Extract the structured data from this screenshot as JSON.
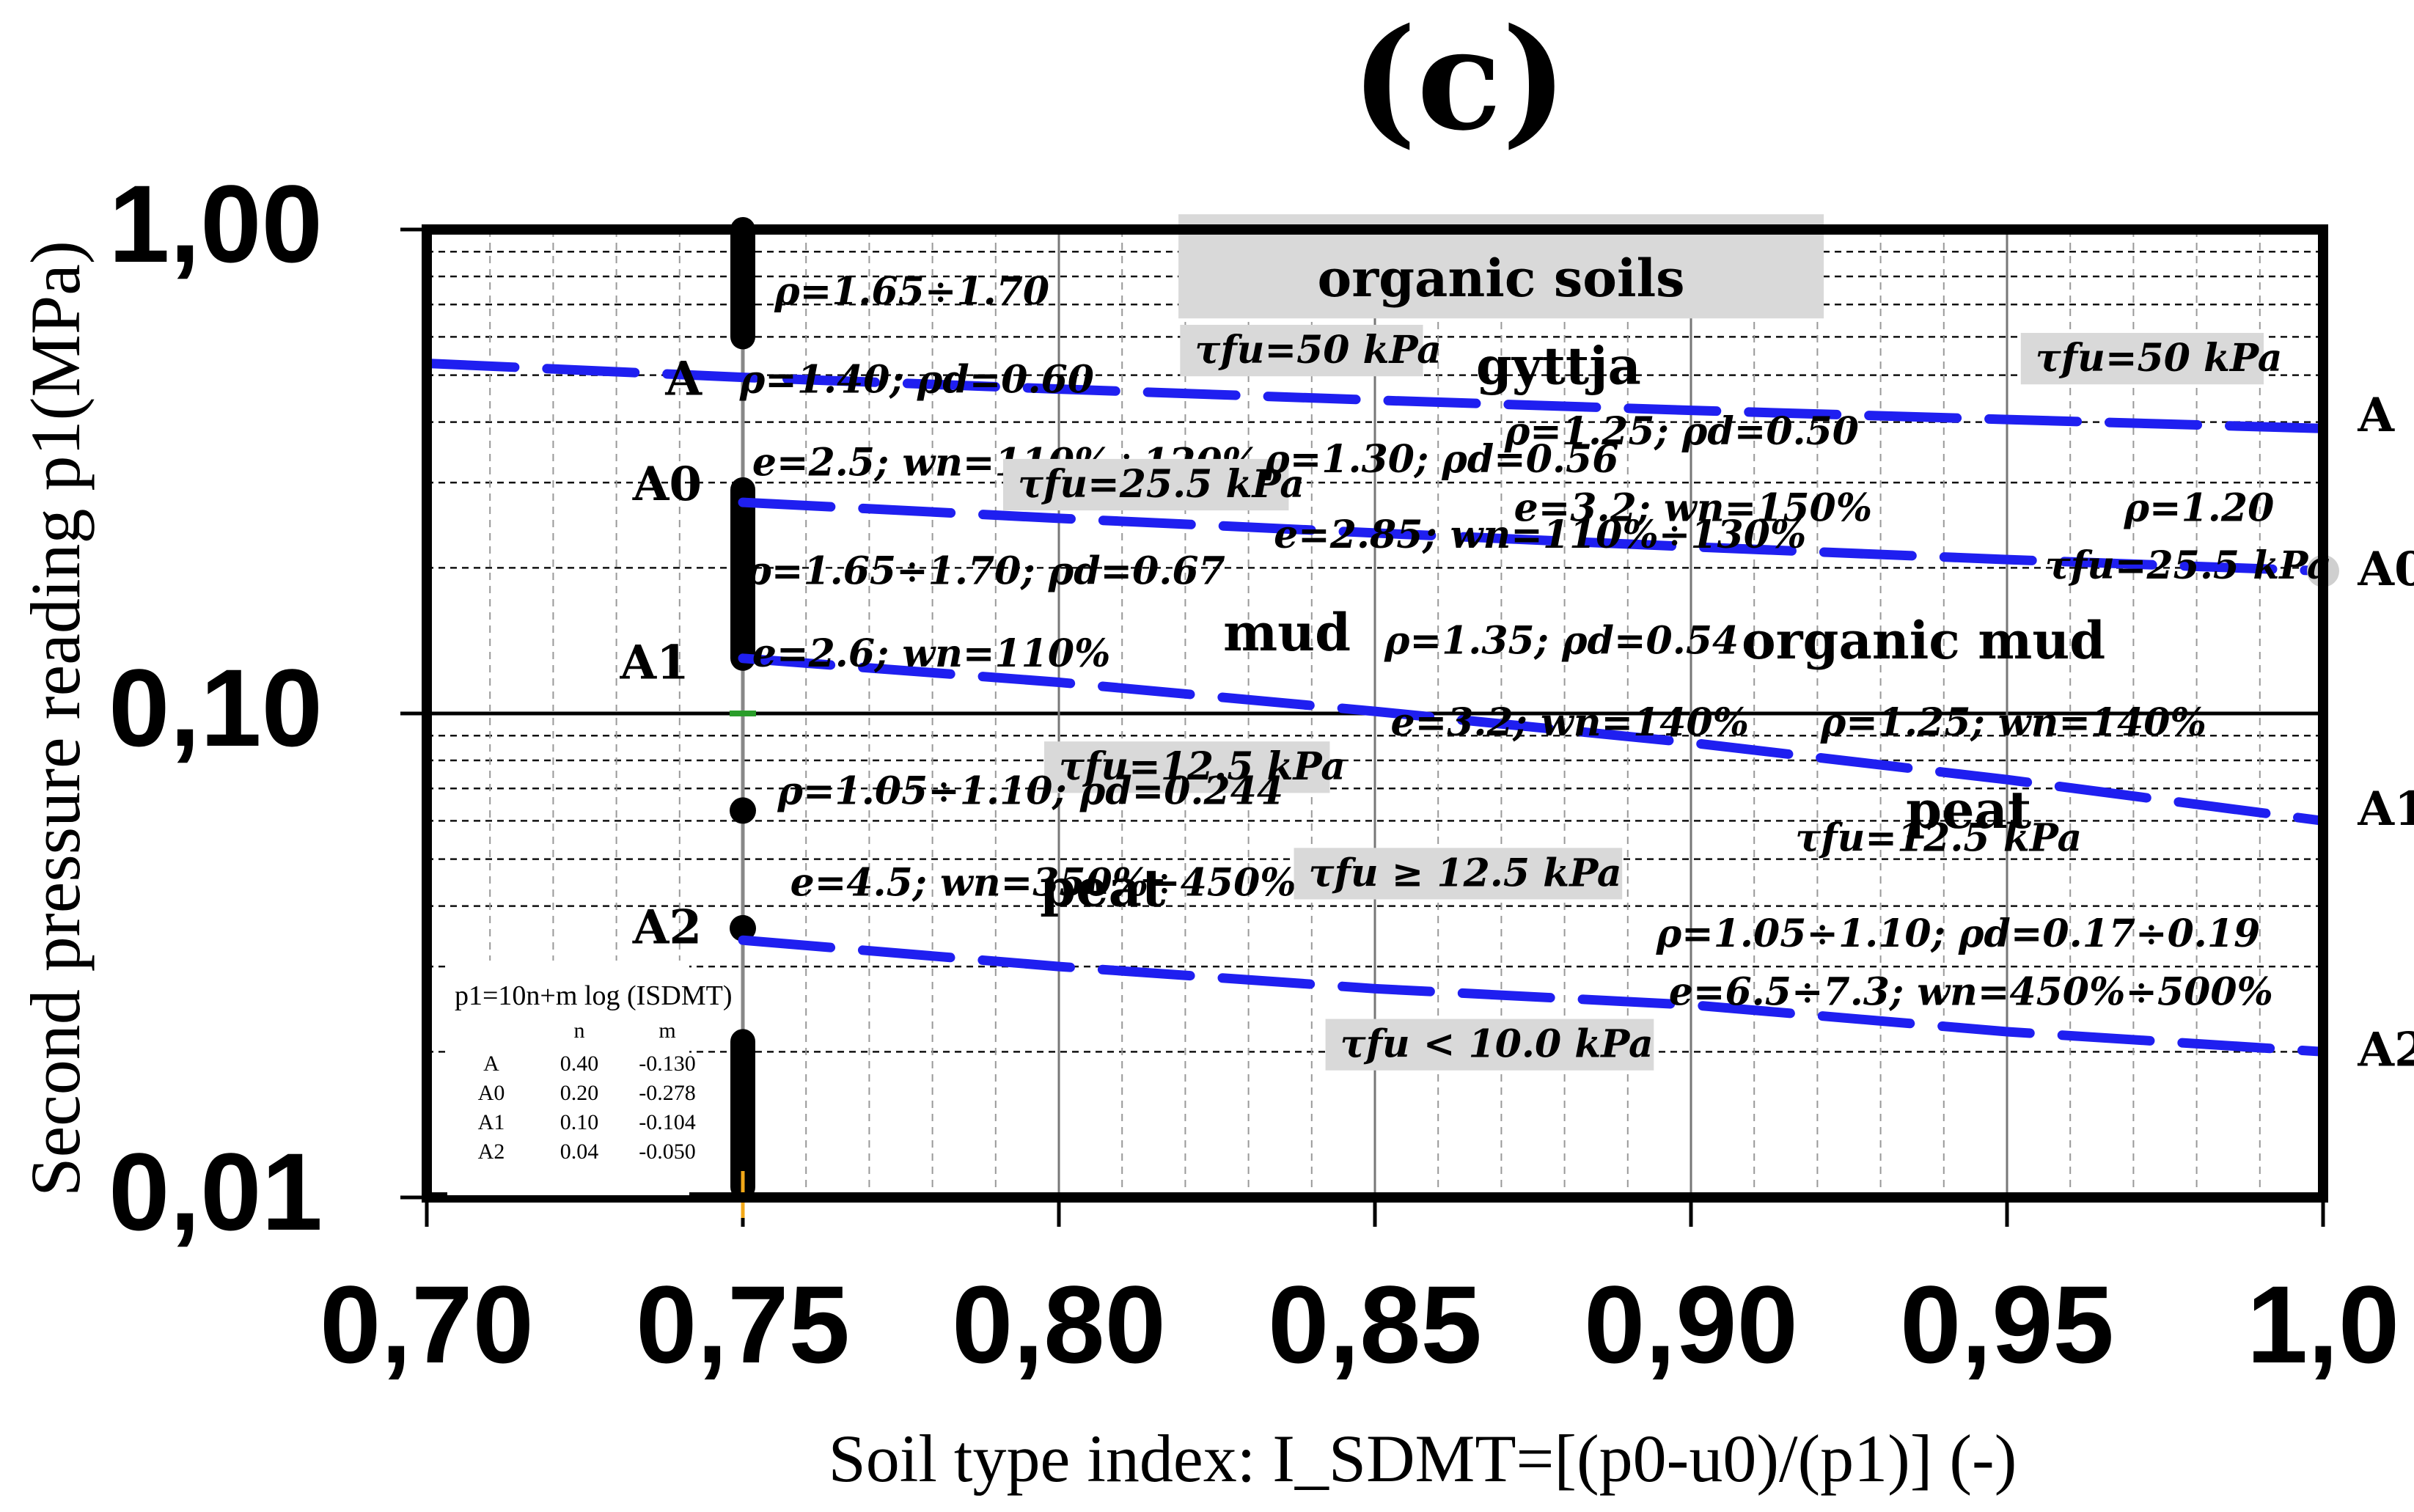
{
  "panel_label": "(c)",
  "chart_data": {
    "type": "line",
    "title": "",
    "xlabel": "Soil type index: I_SDMT=[(p0-u0)/(p1)] (-)",
    "ylabel": "Second pressure reading p1(MPa)",
    "xlim": [
      0.7,
      1.0
    ],
    "ylim": [
      0.01,
      1.0
    ],
    "yscale": "log",
    "x_tick_labels": [
      "0,70",
      "0,75",
      "0,80",
      "0,85",
      "0,90",
      "0,95",
      "1,0"
    ],
    "y_tick_labels": [
      "1,00",
      "0,10",
      "0,01"
    ],
    "y_tick_values": [
      1.0,
      0.1,
      0.01
    ],
    "x_tick_values": [
      0.7,
      0.75,
      0.8,
      0.85,
      0.9,
      0.95,
      1.0
    ],
    "equation": "p1=10^(n+m log(I_SDMT))",
    "series": [
      {
        "name": "A",
        "n": 0.4,
        "m": -0.13,
        "x": [
          0.7,
          0.75,
          0.8,
          0.85,
          0.9,
          0.95,
          1.0
        ],
        "values": [
          0.529,
          0.495,
          0.468,
          0.444,
          0.423,
          0.405,
          0.388
        ]
      },
      {
        "name": "A0",
        "n": 0.2,
        "m": -0.278,
        "x": [
          0.75,
          0.8,
          0.85,
          0.9,
          0.95,
          1.0
        ],
        "values": [
          0.273,
          0.253,
          0.236,
          0.221,
          0.208,
          0.197
        ]
      },
      {
        "name": "A1",
        "n": 0.1,
        "m": -0.104,
        "x": [
          0.75,
          0.8,
          0.85,
          0.9,
          0.95,
          1.0
        ],
        "values": [
          0.13,
          0.116,
          0.101,
          0.087,
          0.073,
          0.06
        ]
      },
      {
        "name": "A2",
        "n": 0.04,
        "m": -0.05,
        "x": [
          0.75,
          0.8,
          0.85,
          0.9,
          0.95,
          1.0
        ],
        "values": [
          0.034,
          0.03,
          0.027,
          0.025,
          0.022,
          0.02
        ]
      }
    ],
    "curve_labels": [
      {
        "text": "A",
        "x": 0.7435,
        "y": 0.455
      },
      {
        "text": "A0",
        "x": 0.7435,
        "y": 0.276
      },
      {
        "text": "A1",
        "x": 0.7415,
        "y": 0.118
      },
      {
        "text": "A2",
        "x": 0.7435,
        "y": 0.0335
      },
      {
        "text": "A",
        "x": 1.0055,
        "y": 0.383
      },
      {
        "text": "A0",
        "x": 1.0055,
        "y": 0.184
      },
      {
        "text": "A1",
        "x": 1.0055,
        "y": 0.0588
      },
      {
        "text": "A2",
        "x": 1.0055,
        "y": 0.0187
      }
    ],
    "legend_table": {
      "equation": "p1=10n+m log (ISDMT)",
      "header": [
        "",
        "n",
        "m"
      ],
      "rows": [
        [
          "A",
          "0.40",
          "-0.130"
        ],
        [
          "A0",
          "0.20",
          "-0.278"
        ],
        [
          "A1",
          "0.10",
          "-0.104"
        ],
        [
          "A2",
          "0.04",
          "-0.050"
        ]
      ]
    },
    "zone_labels": [
      {
        "text": "organic soils",
        "x": 0.834,
        "y": 0.78,
        "boxed": true
      },
      {
        "text": "gyttja",
        "x": 0.866,
        "y": 0.48
      },
      {
        "text": "mud",
        "x": 0.826,
        "y": 0.135
      },
      {
        "text": "organic mud",
        "x": 0.908,
        "y": 0.13
      },
      {
        "text": "peat",
        "x": 0.797,
        "y": 0.04
      },
      {
        "text": "peat",
        "x": 0.934,
        "y": 0.058
      }
    ],
    "annotations": [
      {
        "text": "ρ=1.65÷1.70",
        "x": 0.755,
        "y": 0.7
      },
      {
        "text": "ρ=1.40; ρd=0.60",
        "x": 0.7495,
        "y": 0.46
      },
      {
        "text": "e=2.5; wn=110%÷120%",
        "x": 0.7515,
        "y": 0.31
      },
      {
        "text": "τfu=25.5 kPa",
        "x": 0.7935,
        "y": 0.28,
        "boxed": true
      },
      {
        "text": "τfu=50 kPa",
        "x": 0.8215,
        "y": 0.53,
        "boxed": true
      },
      {
        "text": "ρ=1.30; ρd=0.56",
        "x": 0.8325,
        "y": 0.315
      },
      {
        "text": "e=2.85; wn=110%÷130%",
        "x": 0.834,
        "y": 0.22
      },
      {
        "text": "ρ=1.25; ρd=0.50",
        "x": 0.8705,
        "y": 0.36
      },
      {
        "text": "e=3.2; wn=150%",
        "x": 0.872,
        "y": 0.25
      },
      {
        "text": "τfu=50 kPa",
        "x": 0.9545,
        "y": 0.51,
        "boxed": true
      },
      {
        "text": "ρ=1.20",
        "x": 0.9685,
        "y": 0.25
      },
      {
        "text": "τfu=25.5 kPa",
        "x": 0.956,
        "y": 0.19
      },
      {
        "text": "ρ=1.65÷1.70; ρd=0.67",
        "x": 0.7505,
        "y": 0.185
      },
      {
        "text": "e=2.6; wn=110%",
        "x": 0.7515,
        "y": 0.125
      },
      {
        "text": "ρ=1.35; ρd=0.54",
        "x": 0.8515,
        "y": 0.133
      },
      {
        "text": "e=3.2; wn=140%",
        "x": 0.8525,
        "y": 0.09
      },
      {
        "text": "ρ=1.25; wn=140%",
        "x": 0.9205,
        "y": 0.09
      },
      {
        "text": "τfu=12.5 kPa",
        "x": 0.8,
        "y": 0.073,
        "boxed": true
      },
      {
        "text": "τfu=12.5 kPa",
        "x": 0.9165,
        "y": 0.052
      },
      {
        "text": "ρ=1.05÷1.10; ρd=0.244",
        "x": 0.7555,
        "y": 0.065
      },
      {
        "text": "e=4.5; wn=350%÷450%",
        "x": 0.7575,
        "y": 0.042
      },
      {
        "text": "τfu ≥ 12.5 kPa",
        "x": 0.8395,
        "y": 0.044,
        "boxed": true
      },
      {
        "text": "ρ=1.05÷1.10; ρd=0.17÷0.19",
        "x": 0.8945,
        "y": 0.033
      },
      {
        "text": "e=6.5÷7.3; wn=450%÷500%",
        "x": 0.8965,
        "y": 0.025
      },
      {
        "text": "τfu < 10.0 kPa",
        "x": 0.8445,
        "y": 0.0195,
        "boxed": true
      }
    ],
    "grid": true,
    "legend_position": "bottom-left"
  }
}
